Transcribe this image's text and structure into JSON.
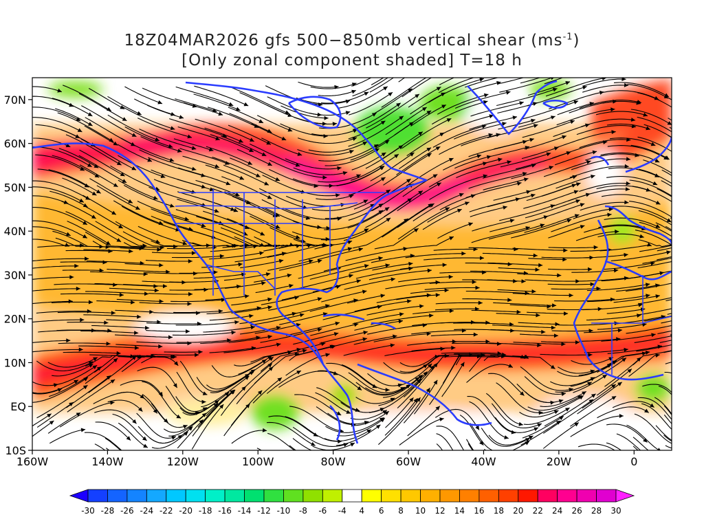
{
  "title": {
    "line1_prefix": "18Z04MAR2026 gfs 500−850mb vertical shear (ms",
    "line1_sup": "-1",
    "line1_suffix": ")",
    "line2": "[Only zonal component shaded] T=18 h"
  },
  "map": {
    "lat_labels": [
      "70N",
      "60N",
      "50N",
      "40N",
      "30N",
      "20N",
      "10N",
      "EQ",
      "10S"
    ],
    "lon_labels": [
      "160W",
      "140W",
      "120W",
      "100W",
      "80W",
      "60W",
      "40W",
      "20W",
      "0"
    ],
    "lat_range": [
      -10,
      75
    ],
    "lon_range": [
      -160,
      10
    ],
    "coastline_color": "#2a3cff",
    "streamline_color": "#000000"
  },
  "colorbar": {
    "labels": [
      "-30",
      "-28",
      "-26",
      "-24",
      "-22",
      "-20",
      "-18",
      "-16",
      "-14",
      "-12",
      "-10",
      "-8",
      "-6",
      "-4",
      "4",
      "6",
      "8",
      "10",
      "12",
      "14",
      "16",
      "18",
      "20",
      "22",
      "24",
      "26",
      "28",
      "30"
    ],
    "colors": [
      "#1c00ff",
      "#1440ff",
      "#1464ff",
      "#1484ff",
      "#14a8ff",
      "#00c8ff",
      "#00e0f0",
      "#00f0c8",
      "#00e8a0",
      "#00e070",
      "#30e040",
      "#60e020",
      "#90e000",
      "#c0f000",
      "#ffffff",
      "#ffff00",
      "#ffe000",
      "#ffc800",
      "#ffb000",
      "#ff9800",
      "#ff8000",
      "#ff6000",
      "#ff4000",
      "#ff1800",
      "#ff0060",
      "#ff0090",
      "#f000b0",
      "#e000d0",
      "#ff20ff"
    ]
  }
}
